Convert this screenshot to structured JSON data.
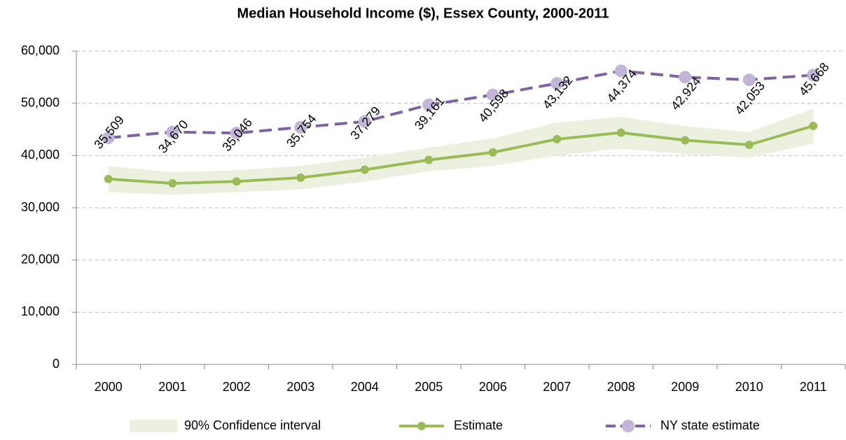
{
  "chart_data": {
    "type": "line",
    "title": "Median Household Income ($), Essex County, 2000-2011",
    "categories": [
      "2000",
      "2001",
      "2002",
      "2003",
      "2004",
      "2005",
      "2006",
      "2007",
      "2008",
      "2009",
      "2010",
      "2011"
    ],
    "series": [
      {
        "name": "90% Confidence interval",
        "color": "#ebf1de",
        "lower": [
          33000,
          32500,
          33000,
          33500,
          35000,
          37000,
          38000,
          40000,
          41300,
          40300,
          39600,
          42300
        ],
        "upper": [
          38000,
          36800,
          37200,
          38000,
          39600,
          41500,
          43300,
          46300,
          47400,
          45600,
          44500,
          49000
        ]
      },
      {
        "name": "Estimate",
        "color": "#9bbb59",
        "values": [
          35509,
          34670,
          35046,
          35754,
          37279,
          39161,
          40598,
          43132,
          44374,
          42924,
          42053,
          45668
        ],
        "value_labels": [
          "35,509",
          "34,670",
          "35,046",
          "35,754",
          "37,279",
          "39,161",
          "40,598",
          "43,132",
          "44,374",
          "42,924",
          "42,053",
          "45,668"
        ]
      },
      {
        "name": "NY state estimate",
        "color": "#8064a2",
        "marker_color": "#c3b5d8",
        "values": [
          43400,
          44500,
          44300,
          45400,
          46500,
          49700,
          51600,
          53800,
          56200,
          55000,
          54500,
          55400
        ]
      }
    ],
    "ylim": [
      0,
      60000
    ],
    "yticks": [
      0,
      {
        "value": 10000,
        "label": "10,000"
      },
      {
        "value": 20000,
        "label": "20,000"
      },
      {
        "value": 30000,
        "label": "30,000"
      },
      {
        "value": 40000,
        "label": "40,000"
      },
      {
        "value": 50000,
        "label": "50,000"
      },
      {
        "value": 60000,
        "label": "60,000"
      }
    ],
    "grid": true,
    "legend": "bottom"
  }
}
